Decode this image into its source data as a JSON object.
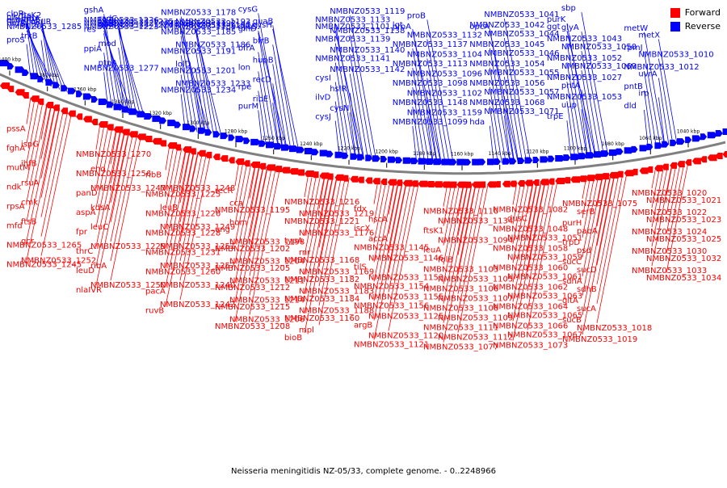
{
  "caption": "Neisseria meningitidis NZ-05/33, complete genome. - 0..2248966",
  "colors": {
    "forward": "#ff0000",
    "reverse": "#0000ff",
    "backbone": "#808080"
  },
  "legend": [
    {
      "label": "Forward",
      "color": "#ff0000"
    },
    {
      "label": "Reverse",
      "color": "#0000ff"
    }
  ],
  "scale_labels": [
    "1400 kbp",
    "1380 kbp",
    "1360 kbp",
    "1340 kbp",
    "1320 kbp",
    "1300 kbp",
    "1280 kbp",
    "1260 kbp",
    "1240 kbp",
    "1220 kbp",
    "1200 kbp",
    "1180 kbp",
    "1160 kbp",
    "1140 kbp",
    "1120 kbp",
    "1100 kbp",
    "1080 kbp",
    "1060 kbp",
    "1040 kbp"
  ],
  "reverse_labels": [
    "proS",
    "trxB",
    "rplI",
    "tig",
    "clpP",
    "ftsK2",
    "plsC",
    "nrdA",
    "ecoRIIM",
    "ecoRIIR",
    "nrdB",
    "mltB",
    "NMBNZ0533_1285",
    "NMBNZ0533_1277",
    "ptpA",
    "ppiA",
    "mod",
    "res",
    "glxK",
    "gshA",
    "radC",
    "NMBNZ0533_1236",
    "NMBNZ0533_1235",
    "NMBNZ0533_1227",
    "NMBNZ0533_1224",
    "NMBNZ0533_1223",
    "NMBNZ0533_1234",
    "NMBNZ0533_1233",
    "NMBNZ0533_1201",
    "lolD",
    "NMBNZ0533_1191",
    "NMBNZ0533_1186",
    "NMBNZ0533_1185",
    "NMBNZ0533_1181",
    "NMBNZ0533_1178",
    "NMBNZ0533_1193",
    "NMBNZ0533_1192",
    "NMBNZ0533_1190",
    "NMBNZ0533_1189",
    "purM",
    "ribE",
    "rpe",
    "recD",
    "lon",
    "hupB",
    "bfrA",
    "bfrB",
    "glnD",
    "guaB",
    "cysG",
    "cysH",
    "cysD",
    "cysJ",
    "cysN",
    "ilvD",
    "hslR",
    "cysI",
    "NMBNZ0533_1142",
    "NMBNZ0533_1141",
    "NMBNZ0533_1140",
    "NMBNZ0533_1139",
    "NMBNZ0533_1138",
    "NMBNZ0533_1133",
    "NMBNZ0533_1119",
    "NMBNZ0533_1101",
    "NMBNZ0533_1099",
    "NMBNZ0533_1159",
    "NMBNZ0533_1148",
    "NMBNZ0533_1102",
    "NMBNZ0533_1098",
    "NMBNZ0533_1096",
    "NMBNZ0533_1113",
    "NMBNZ0533_1104",
    "NMBNZ0533_1137",
    "NMBNZ0533_1132",
    "lgt",
    "proB",
    "proA",
    "hda",
    "NMBNZ0533_1071",
    "NMBNZ0533_1068",
    "NMBNZ0533_1057",
    "NMBNZ0533_1056",
    "NMBNZ0533_1055",
    "NMBNZ0533_1054",
    "NMBNZ0533_1046",
    "NMBNZ0533_1045",
    "NMBNZ0533_1044",
    "NMBNZ0533_1042",
    "NMBNZ0533_1041",
    "opcA",
    "trpE",
    "uup",
    "NMBNZ0533_1053",
    "pntA",
    "NMBNZ0533_1027",
    "NMBNZ0533_1069",
    "NMBNZ0533_1052",
    "NMBNZ0533_1050",
    "NMBNZ0533_1043",
    "glyA",
    "purK",
    "sbp",
    "ggt",
    "dld",
    "irp",
    "pntB",
    "uvrA",
    "NMBNZ0533_1012",
    "NMBNZ0533_1010",
    "rpmJ",
    "metX",
    "metW"
  ],
  "forward_labels": [
    "pssA",
    "ispG",
    "fghA",
    "ihfB",
    "mutM",
    "rsuA",
    "ndk",
    "cmk",
    "rpsA",
    "ftsB",
    "mfd",
    "gcr",
    "NMBNZ0533_1265",
    "NMBNZ0533_1252",
    "NMBNZ0533_1245",
    "NMBNZ0533_1270",
    "eno",
    "NMBNZ0533_1256",
    "NMBNZ0533_1247",
    "panD",
    "kdsA",
    "aspA",
    "leuC",
    "fpr",
    "NMBNZ0533_1229",
    "thrC",
    "ribA",
    "leuD",
    "NMBNZ0533_1250",
    "nlaIVR",
    "ribB",
    "NMBNZ0533_1248",
    "NMBNZ0533_1225",
    "leuB",
    "NMBNZ0533_1226",
    "NMBNZ0533_1249",
    "NMBNZ0533_1228",
    "NMBNZ0533_1251",
    "NMBNZ0533_1231",
    "NMBNZ0533_1257",
    "NMBNZ0533_1260",
    "NMBNZ0533_1240",
    "pacA",
    "NMBNZ0533_1242",
    "ruvB",
    "recR",
    "cca",
    "NMBNZ0533_1195",
    "hom",
    "ung",
    "NMBNZ0533_1198",
    "NMBNZ0533_1202",
    "NMBNZ0533_1204",
    "NMBNZ0533_1205",
    "NMBNZ0533_1211",
    "NMBNZ0533_1212",
    "NMBNZ0533_1214",
    "NMBNZ0533_1215",
    "NMBNZ0533_1206",
    "NMBNZ0533_1208",
    "NMBNZ0533_1216",
    "NMBNZ0533_1219",
    "NMBNZ0533_1221",
    "NMBNZ0533_1176",
    "typA",
    "rnr",
    "NMBNZ0533_1168",
    "NMBNZ0533_1169",
    "NMBNZ0533_1182",
    "NMBNZ0533_1183",
    "NMBNZ0533_1184",
    "NMBNZ0533_1188",
    "NMBNZ0533_1160",
    "mpl",
    "bioB",
    "fdx",
    "hscA",
    "iscX",
    "accA",
    "NMBNZ0533_1145",
    "NMBNZ0533_1146",
    "tilS",
    "NMBNZ0533_1153",
    "NMBNZ0533_1154",
    "NMBNZ0533_1155",
    "NMBNZ0533_1156",
    "NMBNZ0533_1125",
    "argB",
    "NMBNZ0533_1120",
    "NMBNZ0533_1121",
    "NMBNZ0533_1110",
    "NMBNZ0533_1134",
    "ftsK1",
    "NMBNZ0533_1094",
    "leuA",
    "folB",
    "NMBNZ0533_1103",
    "NMBNZ0533_1105",
    "NMBNZ0533_1106",
    "NMBNZ0533_1107",
    "NMBNZ0533_1108",
    "NMBNZ0533_1109",
    "NMBNZ0533_1111",
    "NMBNZ0533_1112",
    "NMBNZ0533_1077",
    "NMBNZ0533_1082",
    "dusC",
    "NMBNZ0533_1048",
    "NMBNZ0533_1051",
    "NMBNZ0533_1058",
    "NMBNZ0533_1059",
    "NMBNZ0533_1060",
    "NMBNZ0533_1061",
    "NMBNZ0533_1062",
    "NMBNZ0533_1063",
    "NMBNZ0533_1064",
    "NMBNZ0533_1065",
    "NMBNZ0533_1066",
    "NMBNZ0533_1067",
    "NMBNZ0533_1073",
    "NMBNZ0533_1075",
    "serB",
    "purH",
    "pabA",
    "trpD",
    "psd",
    "sucC",
    "sucD",
    "sdhA",
    "sdhB",
    "gltA",
    "sucA",
    "sucB",
    "NMBNZ0533_1018",
    "NMBNZ0533_1019",
    "NMBNZ0533_1020",
    "NMBNZ0533_1021",
    "NMBNZ0533_1022",
    "NMBNZ0533_1023",
    "NMBNZ0533_1024",
    "NMBNZ0533_1025",
    "NMBNZ0533_1030",
    "NMBNZ0533_1032",
    "NMBNZ0533_1033",
    "NMBNZ0533_1034"
  ]
}
